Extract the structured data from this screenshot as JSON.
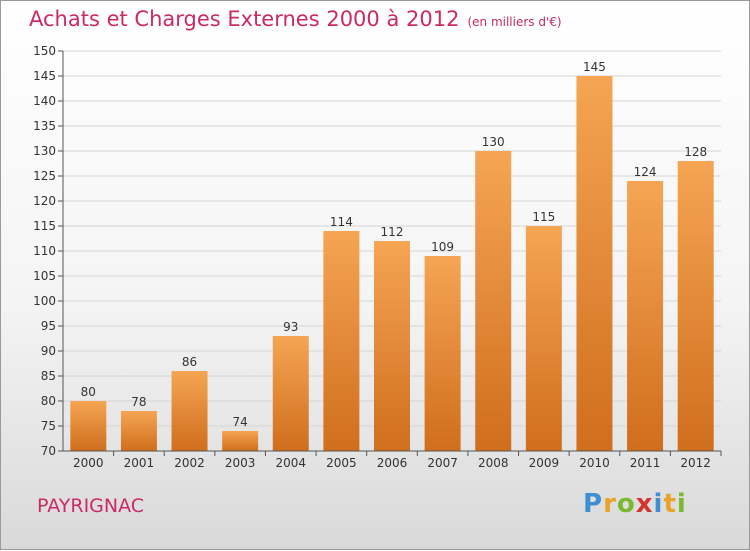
{
  "title": "Achats et Charges Externes 2000 à 2012",
  "subtitle": "(en milliers d'€)",
  "place": "PAYRIGNAC",
  "logo": {
    "letters": [
      "P",
      "r",
      "o",
      "x",
      "i",
      "t",
      "i"
    ],
    "colors": [
      "#3d8fd1",
      "#e8a32a",
      "#7ab830",
      "#d4332f",
      "#3d8fd1",
      "#e8a32a",
      "#7ab830"
    ]
  },
  "colors": {
    "accent": "#cc2a66",
    "bar_top": "#f5a553",
    "bar_bottom": "#d06e1c",
    "grid": "#d5d5d5",
    "axis": "#555555"
  },
  "chart_data": {
    "type": "bar",
    "categories": [
      "2000",
      "2001",
      "2002",
      "2003",
      "2004",
      "2005",
      "2006",
      "2007",
      "2008",
      "2009",
      "2010",
      "2011",
      "2012"
    ],
    "values": [
      80,
      78,
      86,
      74,
      93,
      114,
      112,
      109,
      130,
      115,
      145,
      124,
      128
    ],
    "ylim": [
      70,
      150
    ],
    "yticks": [
      70,
      75,
      80,
      85,
      90,
      95,
      100,
      105,
      110,
      115,
      120,
      125,
      130,
      135,
      140,
      145,
      150
    ],
    "grid": true,
    "data_labels": true
  }
}
